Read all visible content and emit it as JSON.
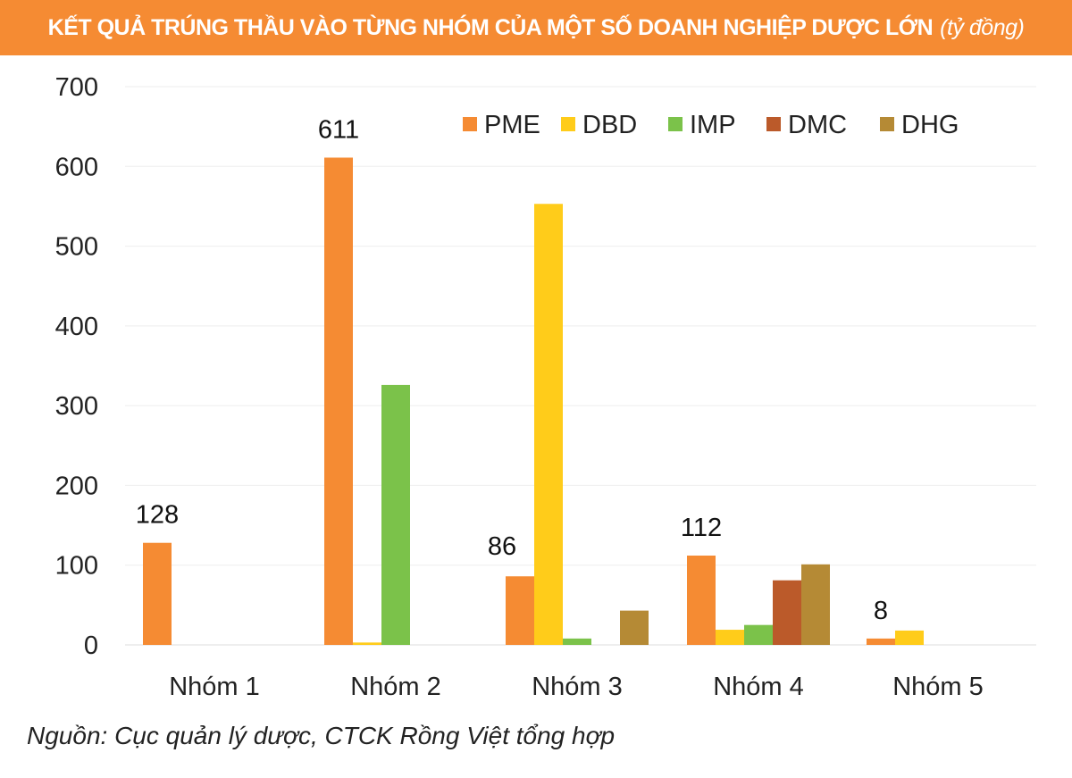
{
  "chart_data": {
    "type": "bar",
    "title": "KẾT QUẢ TRÚNG THẦU VÀO TỪNG NHÓM CỦA MỘT SỐ DOANH NGHIỆP DƯỢC LỚN",
    "subtitle": "(tỷ đồng)",
    "categories": [
      "Nhóm 1",
      "Nhóm 2",
      "Nhóm 3",
      "Nhóm 4",
      "Nhóm 5"
    ],
    "series": [
      {
        "name": "PME",
        "color": "#f58b33",
        "values": [
          128,
          611,
          86,
          112,
          8
        ]
      },
      {
        "name": "DBD",
        "color": "#ffcc1a",
        "values": [
          0,
          3,
          553,
          19,
          18
        ]
      },
      {
        "name": "IMP",
        "color": "#7bc24a",
        "values": [
          0,
          326,
          8,
          25,
          0
        ]
      },
      {
        "name": "DMC",
        "color": "#bb5a2a",
        "values": [
          0,
          0,
          0,
          81,
          0
        ]
      },
      {
        "name": "DHG",
        "color": "#b58a35",
        "values": [
          0,
          0,
          43,
          101,
          0
        ]
      }
    ],
    "data_labels": [
      "128",
      "611",
      "86",
      "112",
      "8"
    ],
    "yticks": [
      "0",
      "100",
      "200",
      "300",
      "400",
      "500",
      "600",
      "700"
    ],
    "ylim": [
      0,
      700
    ],
    "grid": true,
    "legend": "top-right"
  },
  "source": "Nguồn: Cục quản lý dược, CTCK Rồng Việt tổng hợp"
}
